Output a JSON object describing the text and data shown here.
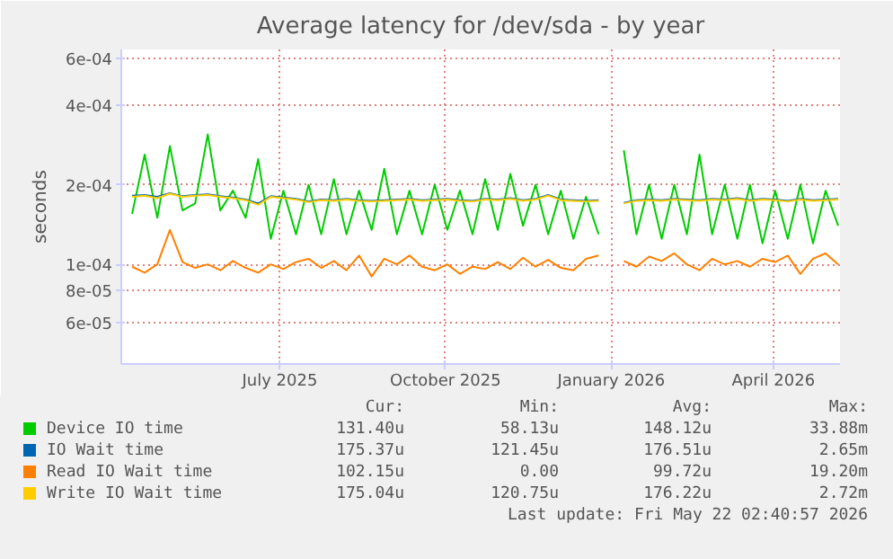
{
  "chart_data": {
    "type": "line",
    "title": "Average latency for /dev/sda - by year",
    "ylabel": "seconds",
    "log": "y",
    "grid": true,
    "legend": "bottom",
    "xlim": [
      "2025-04-04",
      "2026-05-08"
    ],
    "xticks": [
      {
        "value": "2025-07-01",
        "label": "July 2025"
      },
      {
        "value": "2025-10-01",
        "label": "October 2025"
      },
      {
        "value": "2026-01-01",
        "label": "January 2026"
      },
      {
        "value": "2026-04-01",
        "label": "April 2026"
      }
    ],
    "ylim": [
      4.2e-05,
      0.00065
    ],
    "yticks": [
      {
        "value": 6e-05,
        "label": "6e-05"
      },
      {
        "value": 8e-05,
        "label": "8e-05"
      },
      {
        "value": 0.0001,
        "label": "1e-04"
      },
      {
        "value": 0.0002,
        "label": "2e-04"
      },
      {
        "value": 0.0004,
        "label": "4e-04"
      },
      {
        "value": 0.0006,
        "label": "6e-04"
      }
    ],
    "x": [
      "2025-04-10",
      "2025-04-17",
      "2025-04-24",
      "2025-05-01",
      "2025-05-08",
      "2025-05-15",
      "2025-05-22",
      "2025-05-29",
      "2025-06-05",
      "2025-06-12",
      "2025-06-19",
      "2025-06-26",
      "2025-07-03",
      "2025-07-10",
      "2025-07-17",
      "2025-07-24",
      "2025-07-31",
      "2025-08-07",
      "2025-08-14",
      "2025-08-21",
      "2025-08-28",
      "2025-09-04",
      "2025-09-11",
      "2025-09-18",
      "2025-09-25",
      "2025-10-02",
      "2025-10-09",
      "2025-10-16",
      "2025-10-23",
      "2025-10-30",
      "2025-11-06",
      "2025-11-13",
      "2025-11-20",
      "2025-11-27",
      "2025-12-04",
      "2025-12-11",
      "2025-12-18",
      "2025-12-25",
      "2026-01-01",
      "2026-01-08",
      "2026-01-15",
      "2026-01-22",
      "2026-01-29",
      "2026-02-05",
      "2026-02-12",
      "2026-02-19",
      "2026-02-26",
      "2026-03-05",
      "2026-03-12",
      "2026-03-19",
      "2026-03-26",
      "2026-04-02",
      "2026-04-09",
      "2026-04-16",
      "2026-04-23",
      "2026-04-30",
      "2026-05-07"
    ],
    "series": [
      {
        "name": "Device IO time",
        "color": "#00cc00",
        "values": [
          0.000155,
          0.00026,
          0.00015,
          0.00028,
          0.00016,
          0.00017,
          0.00031,
          0.00016,
          0.00019,
          0.00015,
          0.00025,
          0.000125,
          0.00019,
          0.00013,
          0.0002,
          0.00013,
          0.00021,
          0.00013,
          0.00019,
          0.000135,
          0.00023,
          0.00013,
          0.00019,
          0.00013,
          0.0002,
          0.000135,
          0.00019,
          0.00013,
          0.00021,
          0.000135,
          0.00022,
          0.00014,
          0.0002,
          0.00013,
          0.00019,
          0.000125,
          0.00018,
          0.00013,
          null,
          0.00027,
          0.00013,
          0.0002,
          0.000125,
          0.0002,
          0.00013,
          0.00026,
          0.00013,
          0.0002,
          0.000125,
          0.0002,
          0.00012,
          0.00019,
          0.000125,
          0.0002,
          0.00012,
          0.00019,
          0.00014
        ]
      },
      {
        "name": "IO Wait time",
        "color": "#0066b3",
        "values": [
          0.000182,
          0.000183,
          0.00018,
          0.000186,
          0.000181,
          0.000183,
          0.000184,
          0.000181,
          0.000179,
          0.000176,
          0.00017,
          0.000181,
          0.000179,
          0.000177,
          0.000173,
          0.000176,
          0.000175,
          0.000177,
          0.000175,
          0.000174,
          0.000175,
          0.000176,
          0.000177,
          0.000175,
          0.000176,
          0.000177,
          0.000175,
          0.000174,
          0.000177,
          0.000176,
          0.000178,
          0.000175,
          0.000177,
          0.000183,
          0.000176,
          0.000175,
          0.000174,
          0.000175,
          null,
          0.000171,
          0.000175,
          0.000176,
          0.000175,
          0.000177,
          0.000176,
          0.000175,
          0.000177,
          0.000176,
          0.000178,
          0.000175,
          0.000177,
          0.000176,
          0.000174,
          0.000177,
          0.000175,
          0.000176,
          0.000177
        ]
      },
      {
        "name": "Read IO Wait time",
        "color": "#ff8000",
        "values": [
          9.8e-05,
          9.3e-05,
          0.0001,
          0.000135,
          0.000102,
          9.7e-05,
          0.0001,
          9.5e-05,
          0.000103,
          9.7e-05,
          9.3e-05,
          0.0001,
          9.6e-05,
          0.000102,
          0.000105,
          9.7e-05,
          0.000103,
          9.5e-05,
          0.000108,
          9e-05,
          0.000105,
          0.0001,
          0.000108,
          9.8e-05,
          9.5e-05,
          0.0001,
          9.2e-05,
          9.8e-05,
          9.6e-05,
          0.000102,
          9.6e-05,
          0.000106,
          9.8e-05,
          0.000104,
          9.7e-05,
          9.5e-05,
          0.000105,
          0.000108,
          null,
          0.000103,
          9.8e-05,
          0.000107,
          0.000103,
          0.00011,
          0.0001,
          9.5e-05,
          0.000105,
          0.0001,
          0.000103,
          9.8e-05,
          0.000105,
          0.000102,
          0.000108,
          9.2e-05,
          0.000105,
          0.00011,
          0.0001
        ]
      },
      {
        "name": "Write IO Wait time",
        "color": "#ffcc00",
        "values": [
          0.00018,
          0.000182,
          0.000178,
          0.000185,
          0.00018,
          0.000182,
          0.000183,
          0.00018,
          0.000178,
          0.000175,
          0.000168,
          0.00018,
          0.000178,
          0.000176,
          0.000172,
          0.000175,
          0.000174,
          0.000176,
          0.000174,
          0.000173,
          0.000174,
          0.000175,
          0.000176,
          0.000174,
          0.000175,
          0.000176,
          0.000174,
          0.000173,
          0.000176,
          0.000175,
          0.000177,
          0.000174,
          0.000176,
          0.000182,
          0.000175,
          0.000174,
          0.000173,
          0.000174,
          null,
          0.00017,
          0.000174,
          0.000175,
          0.000174,
          0.000176,
          0.000175,
          0.000174,
          0.000176,
          0.000175,
          0.000177,
          0.000174,
          0.000176,
          0.000175,
          0.000173,
          0.000176,
          0.000174,
          0.000175,
          0.000176
        ]
      }
    ],
    "annotations": [
      "Cur:",
      "Min:",
      "Avg:",
      "Max:",
      "131.40u",
      "58.13u",
      "148.12u",
      "33.88m",
      "175.37u",
      "121.45u",
      "176.51u",
      "2.65m",
      "102.15u",
      "0.00",
      "99.72u",
      "19.20m",
      "175.04u",
      "120.75u",
      "176.22u",
      "2.72m",
      "Last update: Fri May 22 02:40:57 2026"
    ]
  }
}
